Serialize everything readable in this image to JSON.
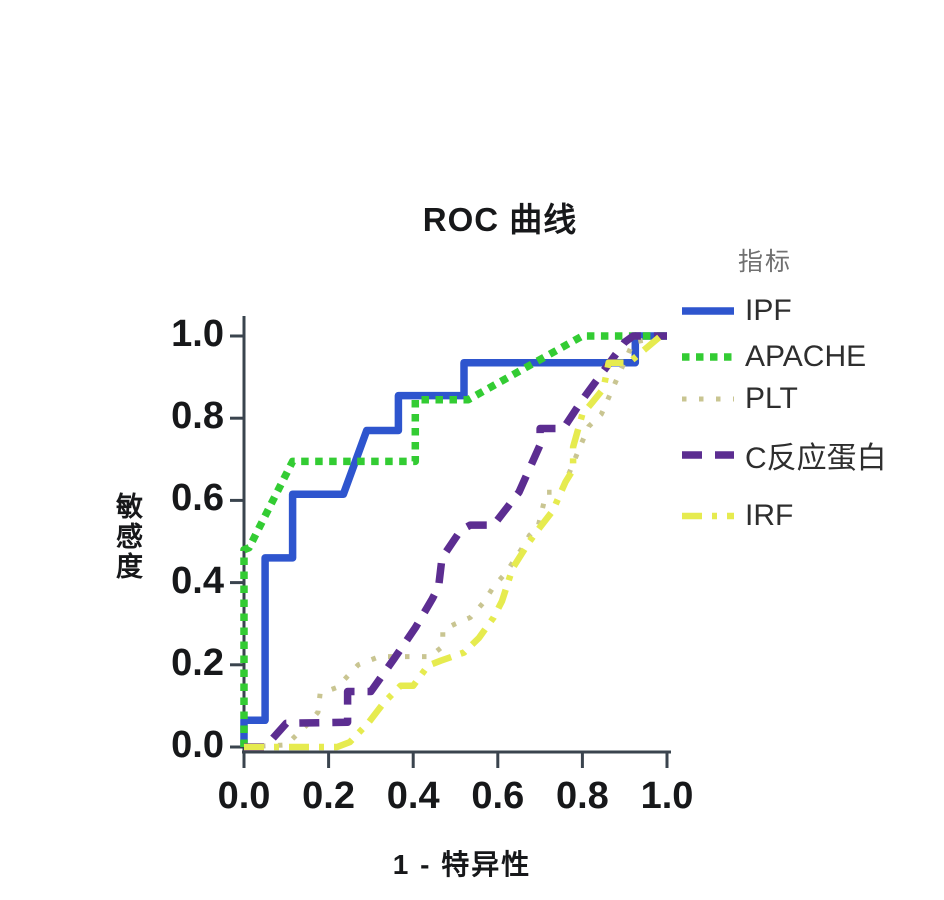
{
  "title": "ROC 曲线",
  "axes": {
    "x_label": "1 - 特异性",
    "y_label": "敏感度",
    "x_tick_labels": [
      "0.0",
      "0.2",
      "0.4",
      "0.6",
      "0.8",
      "1.0"
    ],
    "y_tick_labels": [
      "0.0",
      "0.2",
      "0.4",
      "0.6",
      "0.8",
      "1.0"
    ]
  },
  "legend": {
    "title": "指标"
  },
  "colors": {
    "axis": "#3a444e",
    "text": "#17181a",
    "legend_title": "#707070",
    "legend_label": "#2e2e2e"
  },
  "chart_data": {
    "type": "line",
    "subtype": "roc-step-curves",
    "title": "ROC 曲线",
    "xlabel": "1 - 特异性",
    "ylabel": "敏感度",
    "xlim": [
      0.0,
      1.0
    ],
    "ylim": [
      0.0,
      1.0
    ],
    "x_ticks": [
      0.0,
      0.2,
      0.4,
      0.6,
      0.8,
      1.0
    ],
    "y_ticks": [
      0.0,
      0.2,
      0.4,
      0.6,
      0.8,
      1.0
    ],
    "grid": false,
    "legend_position": "right",
    "legend_title": "指标",
    "series": [
      {
        "name": "IPF",
        "key": "ipf",
        "color": "#2e55ce",
        "style": "solid",
        "points": [
          [
            0,
            0
          ],
          [
            0,
            0.065
          ],
          [
            0.05,
            0.065
          ],
          [
            0.05,
            0.46
          ],
          [
            0.115,
            0.46
          ],
          [
            0.115,
            0.615
          ],
          [
            0.235,
            0.615
          ],
          [
            0.29,
            0.77
          ],
          [
            0.365,
            0.77
          ],
          [
            0.365,
            0.855
          ],
          [
            0.52,
            0.855
          ],
          [
            0.52,
            0.935
          ],
          [
            0.925,
            0.935
          ],
          [
            0.925,
            1
          ],
          [
            1,
            1
          ]
        ]
      },
      {
        "name": "APACHE",
        "key": "apache",
        "color": "#33cc33",
        "style": "dotted-square",
        "points": [
          [
            0,
            0
          ],
          [
            0,
            0.48
          ],
          [
            0.012,
            0.485
          ],
          [
            0.115,
            0.695
          ],
          [
            0.405,
            0.695
          ],
          [
            0.405,
            0.845
          ],
          [
            0.53,
            0.845
          ],
          [
            0.8,
            1
          ],
          [
            1,
            1
          ]
        ]
      },
      {
        "name": "PLT",
        "key": "plt",
        "color": "#c9c591",
        "style": "dotted-fine",
        "points": [
          [
            0,
            0
          ],
          [
            0.1,
            0.005
          ],
          [
            0.155,
            0.06
          ],
          [
            0.175,
            0.085
          ],
          [
            0.18,
            0.13
          ],
          [
            0.22,
            0.145
          ],
          [
            0.27,
            0.2
          ],
          [
            0.32,
            0.22
          ],
          [
            0.44,
            0.22
          ],
          [
            0.47,
            0.245
          ],
          [
            0.47,
            0.285
          ],
          [
            0.5,
            0.3
          ],
          [
            0.535,
            0.315
          ],
          [
            0.565,
            0.35
          ],
          [
            0.59,
            0.39
          ],
          [
            0.62,
            0.425
          ],
          [
            0.655,
            0.48
          ],
          [
            0.675,
            0.515
          ],
          [
            0.695,
            0.535
          ],
          [
            0.715,
            0.62
          ],
          [
            0.75,
            0.62
          ],
          [
            0.79,
            0.72
          ],
          [
            0.815,
            0.78
          ],
          [
            0.845,
            0.81
          ],
          [
            0.875,
            0.88
          ],
          [
            0.92,
            0.985
          ],
          [
            1,
            1
          ]
        ]
      },
      {
        "name": "C反应蛋白",
        "key": "crp",
        "color": "#5c2d91",
        "style": "dashed",
        "points": [
          [
            0,
            0
          ],
          [
            0.05,
            0
          ],
          [
            0.1,
            0.058
          ],
          [
            0.245,
            0.06
          ],
          [
            0.245,
            0.135
          ],
          [
            0.3,
            0.135
          ],
          [
            0.355,
            0.215
          ],
          [
            0.405,
            0.29
          ],
          [
            0.445,
            0.36
          ],
          [
            0.46,
            0.39
          ],
          [
            0.468,
            0.46
          ],
          [
            0.512,
            0.527
          ],
          [
            0.535,
            0.54
          ],
          [
            0.59,
            0.54
          ],
          [
            0.65,
            0.62
          ],
          [
            0.7,
            0.735
          ],
          [
            0.7,
            0.775
          ],
          [
            0.755,
            0.775
          ],
          [
            0.8,
            0.845
          ],
          [
            0.9,
            0.985
          ],
          [
            0.92,
            1
          ],
          [
            1,
            1
          ]
        ]
      },
      {
        "name": "IRF",
        "key": "irf",
        "color": "#e6eb4f",
        "style": "dash-dot",
        "points": [
          [
            0,
            0
          ],
          [
            0.22,
            0
          ],
          [
            0.25,
            0.012
          ],
          [
            0.295,
            0.06
          ],
          [
            0.33,
            0.107
          ],
          [
            0.37,
            0.149
          ],
          [
            0.4,
            0.149
          ],
          [
            0.435,
            0.198
          ],
          [
            0.465,
            0.21
          ],
          [
            0.52,
            0.23
          ],
          [
            0.555,
            0.265
          ],
          [
            0.59,
            0.315
          ],
          [
            0.61,
            0.355
          ],
          [
            0.635,
            0.435
          ],
          [
            0.675,
            0.5
          ],
          [
            0.7,
            0.535
          ],
          [
            0.73,
            0.575
          ],
          [
            0.76,
            0.645
          ],
          [
            0.778,
            0.675
          ],
          [
            0.778,
            0.73
          ],
          [
            0.8,
            0.81
          ],
          [
            0.823,
            0.838
          ],
          [
            0.85,
            0.872
          ],
          [
            0.862,
            0.935
          ],
          [
            0.91,
            0.935
          ],
          [
            0.985,
            1
          ],
          [
            1,
            1
          ]
        ]
      }
    ]
  }
}
